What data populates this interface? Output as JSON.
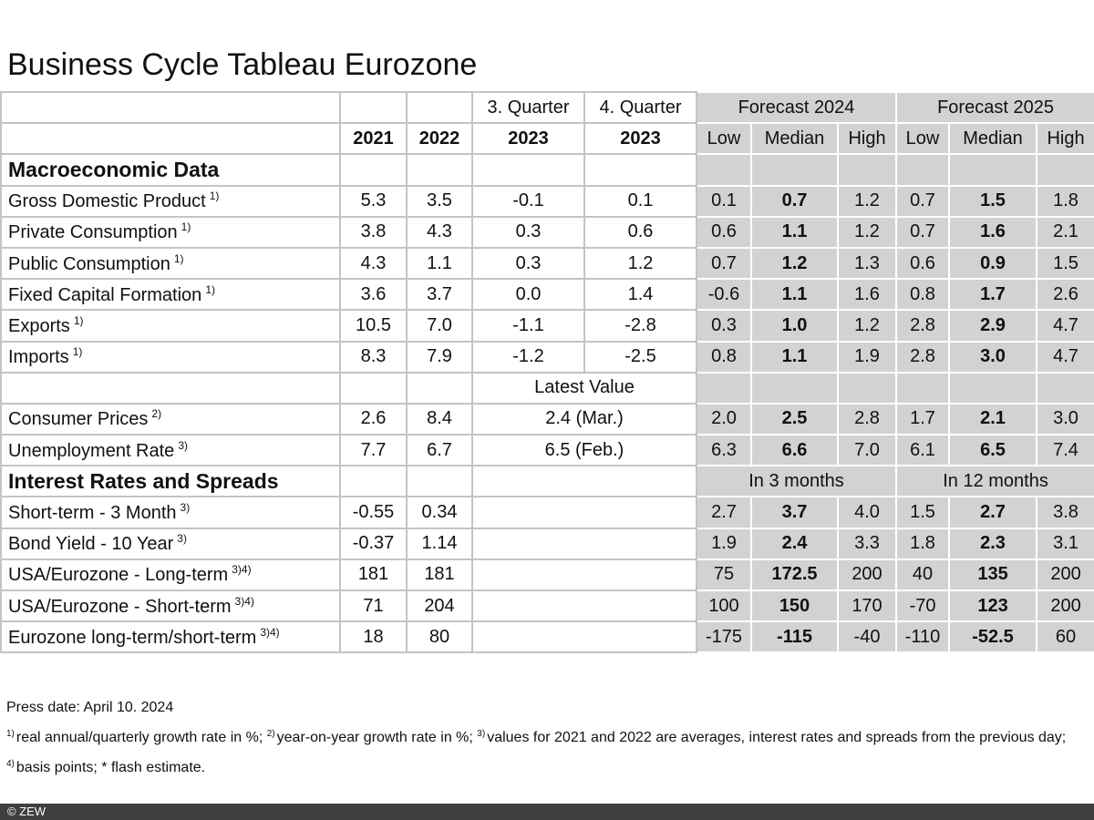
{
  "title": "Business Cycle Tableau Eurozone",
  "table": {
    "header": {
      "q3": "3. Quarter",
      "q4": "4. Quarter",
      "f2024": "Forecast 2024",
      "f2025": "Forecast 2025",
      "years": [
        "2021",
        "2022",
        "2023",
        "2023"
      ],
      "range": [
        "Low",
        "Median",
        "High",
        "Low",
        "Median",
        "High"
      ]
    },
    "rows": [
      {
        "label": "Macroeconomic Data"
      },
      {
        "label": "Gross Domestic Product",
        "note": "1)",
        "values": [
          "5.3",
          "3.5",
          "-0.1",
          "0.1"
        ],
        "forecast": [
          "0.1",
          "0.7",
          "1.2",
          "0.7",
          "1.5",
          "1.8"
        ]
      },
      {
        "label": "Private Consumption",
        "note": "1)",
        "values": [
          "3.8",
          "4.3",
          "0.3",
          "0.6"
        ],
        "forecast": [
          "0.6",
          "1.1",
          "1.2",
          "0.7",
          "1.6",
          "2.1"
        ]
      },
      {
        "label": "Public Consumption",
        "note": "1)",
        "values": [
          "4.3",
          "1.1",
          "0.3",
          "1.2"
        ],
        "forecast": [
          "0.7",
          "1.2",
          "1.3",
          "0.6",
          "0.9",
          "1.5"
        ]
      },
      {
        "label": "Fixed Capital Formation",
        "note": "1)",
        "values": [
          "3.6",
          "3.7",
          "0.0",
          "1.4"
        ],
        "forecast": [
          "-0.6",
          "1.1",
          "1.6",
          "0.8",
          "1.7",
          "2.6"
        ]
      },
      {
        "label": "Exports",
        "note": "1)",
        "values": [
          "10.5",
          "7.0",
          "-1.1",
          "-2.8"
        ],
        "forecast": [
          "0.3",
          "1.0",
          "1.2",
          "2.8",
          "2.9",
          "4.7"
        ]
      },
      {
        "label": "Imports",
        "note": "1)",
        "values": [
          "8.3",
          "7.9",
          "-1.2",
          "-2.5"
        ],
        "forecast": [
          "0.8",
          "1.1",
          "1.9",
          "2.8",
          "3.0",
          "4.7"
        ]
      },
      {
        "latest": "Latest Value"
      },
      {
        "label": "Consumer Prices",
        "note": "2)",
        "values": [
          "2.6",
          "8.4"
        ],
        "latest": "2.4 (Mar.)",
        "forecast": [
          "2.0",
          "2.5",
          "2.8",
          "1.7",
          "2.1",
          "3.0"
        ]
      },
      {
        "label": "Unemployment Rate",
        "note": "3)",
        "values": [
          "7.7",
          "6.7"
        ],
        "latest": "6.5 (Feb.)",
        "forecast": [
          "6.3",
          "6.6",
          "7.0",
          "6.1",
          "6.5",
          "7.4"
        ]
      },
      {
        "label": "Interest Rates and Spreads",
        "horizons": [
          "In 3 months",
          "In 12 months"
        ]
      },
      {
        "label": "Short-term - 3 Month",
        "note": "3)",
        "values": [
          "-0.55",
          "0.34"
        ],
        "forecast": [
          "2.7",
          "3.7",
          "4.0",
          "1.5",
          "2.7",
          "3.8"
        ]
      },
      {
        "label": "Bond Yield - 10 Year",
        "note": "3)",
        "values": [
          "-0.37",
          "1.14"
        ],
        "forecast": [
          "1.9",
          "2.4",
          "3.3",
          "1.8",
          "2.3",
          "3.1"
        ]
      },
      {
        "label": "USA/Eurozone - Long-term",
        "note": "3)4)",
        "values": [
          "181",
          "181"
        ],
        "forecast": [
          "75",
          "172.5",
          "200",
          "40",
          "135",
          "200"
        ]
      },
      {
        "label": "USA/Eurozone - Short-term",
        "note": "3)4)",
        "values": [
          "71",
          "204"
        ],
        "forecast": [
          "100",
          "150",
          "170",
          "-70",
          "123",
          "200"
        ]
      },
      {
        "label": "Eurozone long-term/short-term",
        "note": "3)4)",
        "values": [
          "18",
          "80"
        ],
        "forecast": [
          "-175",
          "-115",
          "-40",
          "-110",
          "-52.5",
          "60"
        ]
      }
    ]
  },
  "footer": {
    "press_date": "Press date: April 10. 2024",
    "notes": [
      {
        "mark": "1)",
        "text": "real annual/quarterly growth rate in %;"
      },
      {
        "mark": "2)",
        "text": "year-on-year growth rate in %;"
      },
      {
        "mark": "3)",
        "text": "values for 2021  and 2022 are averages, interest rates and spreads from the previous day;"
      },
      {
        "mark": "4)",
        "text": "basis points; * flash estimate."
      }
    ]
  },
  "copyright": "© ZEW"
}
